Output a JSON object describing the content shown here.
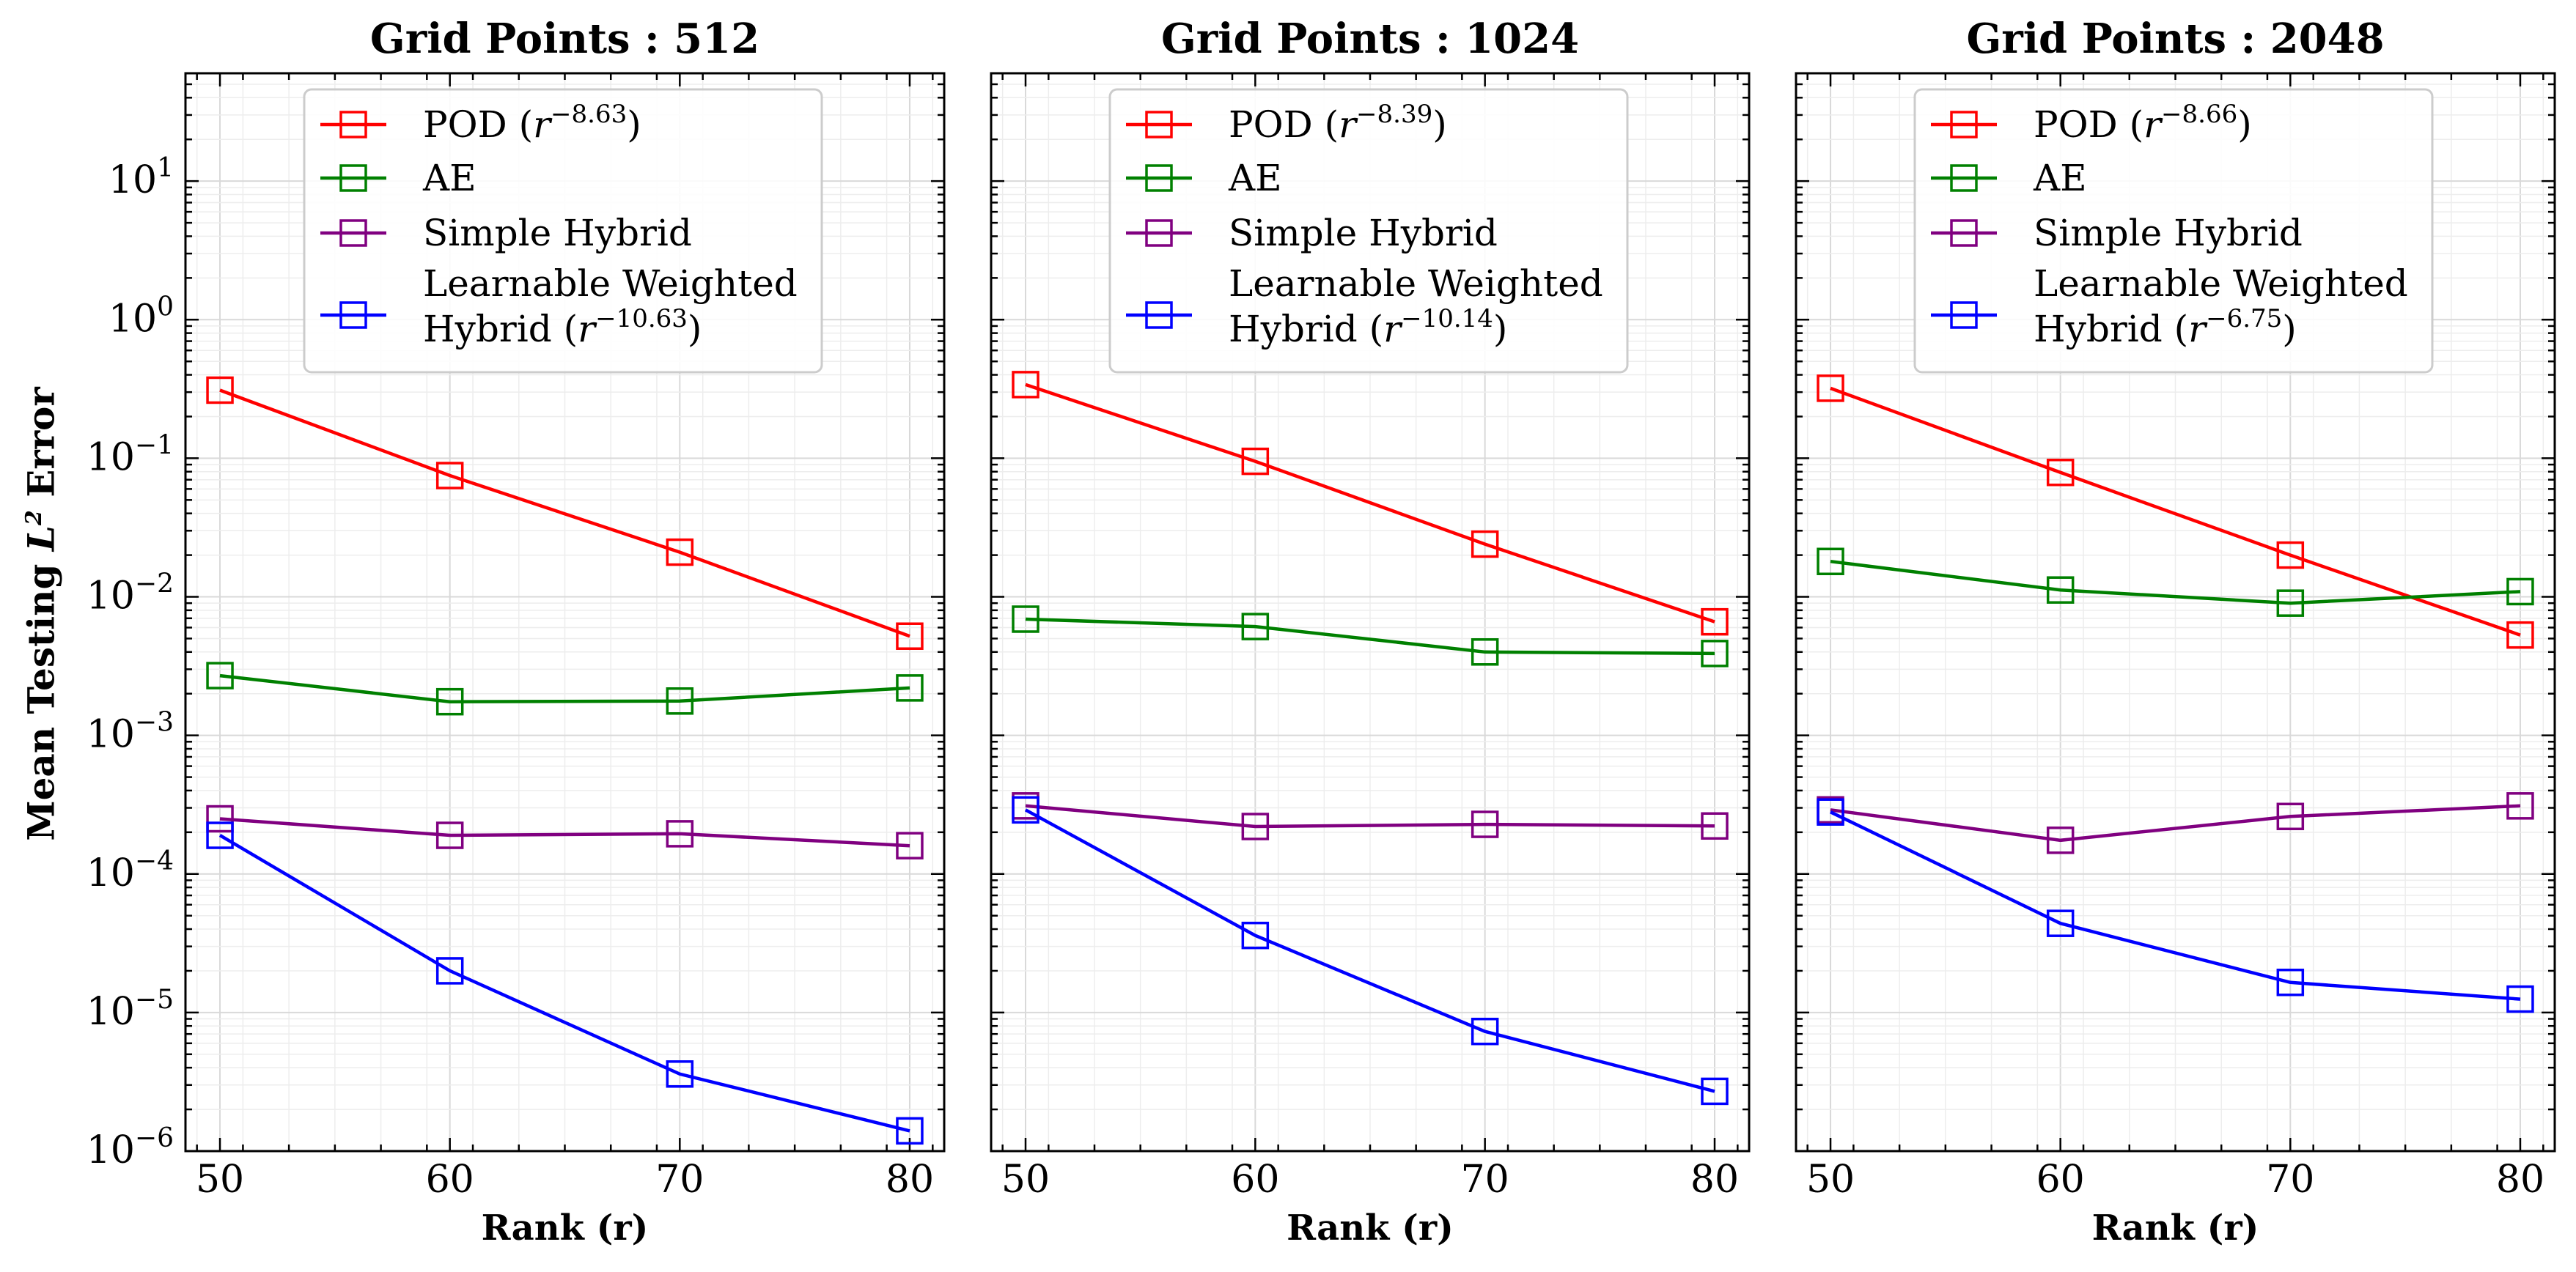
{
  "figure": {
    "ylabel_prefix": "Mean Testing ",
    "ylabel_math_base": "L",
    "ylabel_math_sup": "2",
    "ylabel_suffix": " Error"
  },
  "colors": {
    "pod": "#ff0000",
    "ae": "#008000",
    "simple_hybrid": "#800080",
    "learnable": "#0000ff"
  },
  "chart_data": [
    {
      "type": "line",
      "title": "Grid Points : 512",
      "xlabel": "Rank (r)",
      "ylabel": "Mean Testing L² Error",
      "yscale": "log",
      "x": [
        50,
        60,
        70,
        80
      ],
      "xlim": [
        48.5,
        81.5
      ],
      "ylim": [
        1e-06,
        60
      ],
      "xticks": [
        "50",
        "60",
        "70",
        "80"
      ],
      "yticks": [
        "10⁻⁶",
        "10⁻⁵",
        "10⁻⁴",
        "10⁻³",
        "10⁻²",
        "10⁻¹",
        "10⁰",
        "10¹"
      ],
      "legend_position": "upper center",
      "series": [
        {
          "name": "POD",
          "rate": "−8.63",
          "color": "#ff0000",
          "values": [
            0.31,
            0.075,
            0.021,
            0.0052
          ]
        },
        {
          "name": "AE",
          "color": "#008000",
          "values": [
            0.0027,
            0.00175,
            0.00177,
            0.0022
          ]
        },
        {
          "name": "Simple Hybrid",
          "color": "#800080",
          "values": [
            0.00025,
            0.00019,
            0.000195,
            0.00016
          ]
        },
        {
          "name": "Learnable Weighted",
          "name2": "Hybrid",
          "rate": "−10.63",
          "color": "#0000ff",
          "values": [
            0.00019,
            2e-05,
            3.6e-06,
            1.4e-06
          ]
        }
      ]
    },
    {
      "type": "line",
      "title": "Grid Points : 1024",
      "xlabel": "Rank (r)",
      "ylabel": "Mean Testing L² Error",
      "yscale": "log",
      "x": [
        50,
        60,
        70,
        80
      ],
      "xlim": [
        48.5,
        81.5
      ],
      "ylim": [
        1e-06,
        60
      ],
      "xticks": [
        "50",
        "60",
        "70",
        "80"
      ],
      "yticks": [],
      "legend_position": "upper center",
      "series": [
        {
          "name": "POD",
          "rate": "−8.39",
          "color": "#ff0000",
          "values": [
            0.34,
            0.095,
            0.024,
            0.0066
          ]
        },
        {
          "name": "AE",
          "color": "#008000",
          "values": [
            0.0069,
            0.0061,
            0.004,
            0.0039
          ]
        },
        {
          "name": "Simple Hybrid",
          "color": "#800080",
          "values": [
            0.00031,
            0.00022,
            0.000228,
            0.000222
          ]
        },
        {
          "name": "Learnable Weighted",
          "name2": "Hybrid",
          "rate": "−10.14",
          "color": "#0000ff",
          "values": [
            0.00029,
            3.6e-05,
            7.3e-06,
            2.7e-06
          ]
        }
      ]
    },
    {
      "type": "line",
      "title": "Grid Points : 2048",
      "xlabel": "Rank (r)",
      "ylabel": "Mean Testing L² Error",
      "yscale": "log",
      "x": [
        50,
        60,
        70,
        80
      ],
      "xlim": [
        48.5,
        81.5
      ],
      "ylim": [
        1e-06,
        60
      ],
      "xticks": [
        "50",
        "60",
        "70",
        "80"
      ],
      "yticks": [],
      "legend_position": "upper center",
      "series": [
        {
          "name": "POD",
          "rate": "−8.66",
          "color": "#ff0000",
          "values": [
            0.32,
            0.079,
            0.02,
            0.0053
          ]
        },
        {
          "name": "AE",
          "color": "#008000",
          "values": [
            0.018,
            0.0112,
            0.009,
            0.0109
          ]
        },
        {
          "name": "Simple Hybrid",
          "color": "#800080",
          "values": [
            0.00029,
            0.000175,
            0.00026,
            0.00031
          ]
        },
        {
          "name": "Learnable Weighted",
          "name2": "Hybrid",
          "rate": "−6.75",
          "color": "#0000ff",
          "values": [
            0.00028,
            4.4e-05,
            1.65e-05,
            1.25e-05
          ]
        }
      ]
    }
  ]
}
